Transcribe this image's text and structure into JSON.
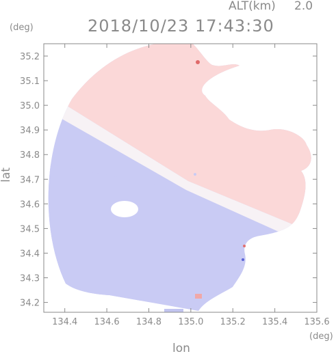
{
  "header": {
    "timestamp": "2018/10/23 17:43:30",
    "altitude_label": "ALT(km)",
    "altitude_value": "2.0"
  },
  "axes": {
    "x_unit": "(deg)",
    "y_unit": "(deg)",
    "x_label": "lon",
    "y_label": "lat"
  },
  "chart_data": {
    "type": "heatmap",
    "x": {
      "min": 134.3,
      "max": 135.6,
      "ticks": [
        134.4,
        134.6,
        134.8,
        135.0,
        135.2,
        135.4,
        135.6
      ],
      "tick_labels": [
        "134.4",
        "134.6",
        "134.8",
        "135.0",
        "135.2",
        "135.4",
        "135.6"
      ]
    },
    "y": {
      "min": 34.16,
      "max": 35.25,
      "ticks": [
        34.2,
        34.3,
        34.4,
        34.5,
        34.6,
        34.7,
        34.8,
        34.9,
        35.0,
        35.1,
        35.2
      ],
      "tick_labels": [
        "34.2",
        "34.3",
        "34.4",
        "34.5",
        "34.6",
        "34.7",
        "34.8",
        "34.9",
        "35.0",
        "35.1",
        "35.2"
      ]
    },
    "radar_site": {
      "lon": 135.02,
      "lat": 34.72
    },
    "colors": {
      "approaching": "#c9cbf4",
      "receding": "#fbd8d8",
      "neutral": "#f7f2f5",
      "frame": "#8a8a8a"
    }
  }
}
